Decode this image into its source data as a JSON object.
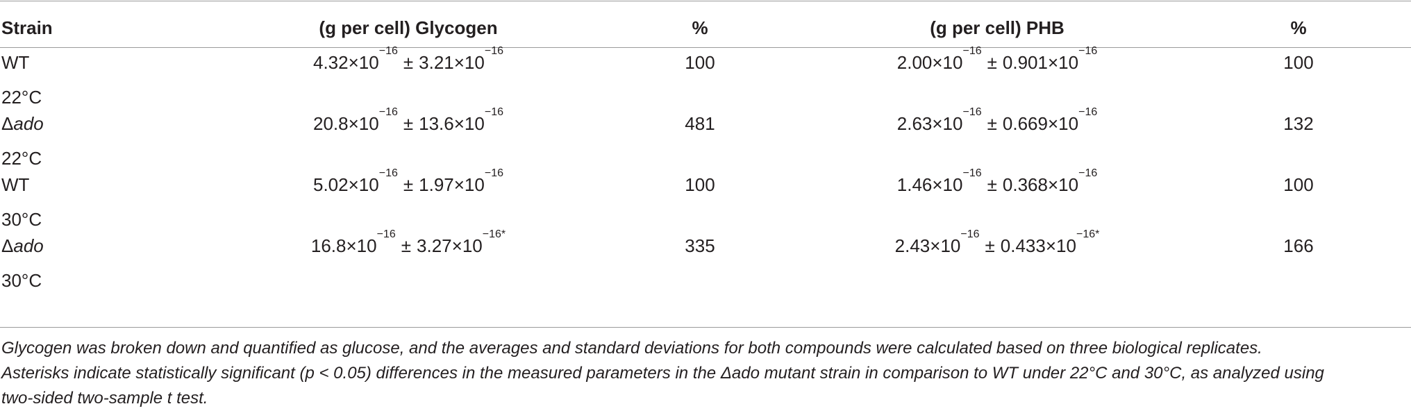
{
  "table": {
    "headers": [
      "Strain",
      "(g per cell) Glycogen",
      "%",
      "(g per cell) PHB",
      "%"
    ],
    "rows": [
      {
        "strain_symbol": "",
        "strain_name": "WT",
        "strain_temp": "22°C",
        "glycogen": {
          "mean": "4.32",
          "sd": "3.21",
          "exp": "−16",
          "sig": ""
        },
        "glycogen_pct": "100",
        "phb": {
          "mean": "2.00",
          "sd": "0.901",
          "exp": "−16",
          "sig": ""
        },
        "phb_pct": "100"
      },
      {
        "strain_symbol": "Δ",
        "strain_name": "ado",
        "strain_temp": "22°C",
        "glycogen": {
          "mean": "20.8",
          "sd": "13.6",
          "exp": "−16",
          "sig": ""
        },
        "glycogen_pct": "481",
        "phb": {
          "mean": "2.63",
          "sd": "0.669",
          "exp": "−16",
          "sig": ""
        },
        "phb_pct": "132"
      },
      {
        "strain_symbol": "",
        "strain_name": "WT",
        "strain_temp": "30°C",
        "glycogen": {
          "mean": "5.02",
          "sd": "1.97",
          "exp": "−16",
          "sig": ""
        },
        "glycogen_pct": "100",
        "phb": {
          "mean": "1.46",
          "sd": "0.368",
          "exp": "−16",
          "sig": ""
        },
        "phb_pct": "100"
      },
      {
        "strain_symbol": "Δ",
        "strain_name": "ado",
        "strain_temp": "30°C",
        "glycogen": {
          "mean": "16.8",
          "sd": "3.27",
          "exp": "−16",
          "sig": "*"
        },
        "glycogen_pct": "335",
        "phb": {
          "mean": "2.43",
          "sd": "0.433",
          "exp": "−16",
          "sig": "*"
        },
        "phb_pct": "166"
      }
    ],
    "times": "×10",
    "plusminus": "±"
  },
  "footnote": {
    "line1": "Glycogen was broken down and quantified as glucose, and the averages and standard deviations for both compounds were calculated based on three biological replicates.",
    "line2": "Asterisks indicate statistically significant (p < 0.05) differences in the measured parameters in the Δado mutant strain in comparison to WT under 22°C and 30°C, as analyzed using",
    "line3": "two-sided two-sample t test."
  }
}
